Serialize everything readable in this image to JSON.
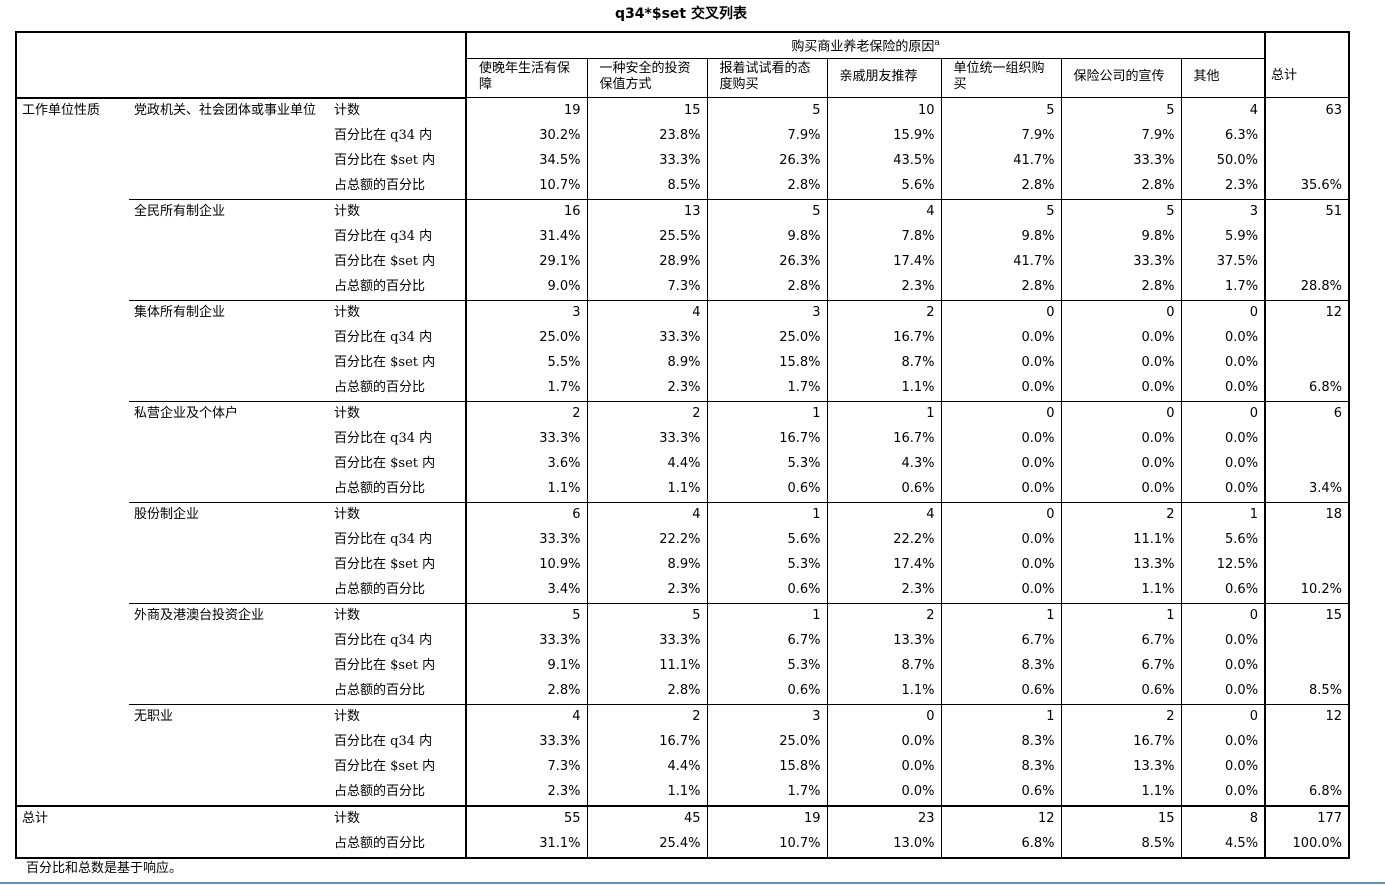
{
  "title": "q34*$set 交叉列表",
  "header": {
    "span_label": "购买商业养老保险的原因",
    "span_sup": "a",
    "columns": [
      "使晚年生活有保障",
      "一种安全的投资保值方式",
      "报着试试看的态度购买",
      "亲戚朋友推荐",
      "单位统一组织购买",
      "保险公司的宣传",
      "其他"
    ],
    "total_label": "总计"
  },
  "row_var_label": "工作单位性质",
  "stat_labels": {
    "count": "计数",
    "pct_row": "百分比在 q34 内",
    "pct_col": "百分比在 $set 内",
    "pct_total": "占总额的百分比"
  },
  "groups": [
    {
      "label": "党政机关、社会团体或事业单位",
      "count": [
        "19",
        "15",
        "5",
        "10",
        "5",
        "5",
        "4"
      ],
      "count_total": "63",
      "pct_row": [
        "30.2%",
        "23.8%",
        "7.9%",
        "15.9%",
        "7.9%",
        "7.9%",
        "6.3%"
      ],
      "pct_col": [
        "34.5%",
        "33.3%",
        "26.3%",
        "43.5%",
        "41.7%",
        "33.3%",
        "50.0%"
      ],
      "pct_total": [
        "10.7%",
        "8.5%",
        "2.8%",
        "5.6%",
        "2.8%",
        "2.8%",
        "2.3%"
      ],
      "pct_total_total": "35.6%"
    },
    {
      "label": "全民所有制企业",
      "count": [
        "16",
        "13",
        "5",
        "4",
        "5",
        "5",
        "3"
      ],
      "count_total": "51",
      "pct_row": [
        "31.4%",
        "25.5%",
        "9.8%",
        "7.8%",
        "9.8%",
        "9.8%",
        "5.9%"
      ],
      "pct_col": [
        "29.1%",
        "28.9%",
        "26.3%",
        "17.4%",
        "41.7%",
        "33.3%",
        "37.5%"
      ],
      "pct_total": [
        "9.0%",
        "7.3%",
        "2.8%",
        "2.3%",
        "2.8%",
        "2.8%",
        "1.7%"
      ],
      "pct_total_total": "28.8%"
    },
    {
      "label": "集体所有制企业",
      "count": [
        "3",
        "4",
        "3",
        "2",
        "0",
        "0",
        "0"
      ],
      "count_total": "12",
      "pct_row": [
        "25.0%",
        "33.3%",
        "25.0%",
        "16.7%",
        "0.0%",
        "0.0%",
        "0.0%"
      ],
      "pct_col": [
        "5.5%",
        "8.9%",
        "15.8%",
        "8.7%",
        "0.0%",
        "0.0%",
        "0.0%"
      ],
      "pct_total": [
        "1.7%",
        "2.3%",
        "1.7%",
        "1.1%",
        "0.0%",
        "0.0%",
        "0.0%"
      ],
      "pct_total_total": "6.8%"
    },
    {
      "label": "私营企业及个体户",
      "count": [
        "2",
        "2",
        "1",
        "1",
        "0",
        "0",
        "0"
      ],
      "count_total": "6",
      "pct_row": [
        "33.3%",
        "33.3%",
        "16.7%",
        "16.7%",
        "0.0%",
        "0.0%",
        "0.0%"
      ],
      "pct_col": [
        "3.6%",
        "4.4%",
        "5.3%",
        "4.3%",
        "0.0%",
        "0.0%",
        "0.0%"
      ],
      "pct_total": [
        "1.1%",
        "1.1%",
        "0.6%",
        "0.6%",
        "0.0%",
        "0.0%",
        "0.0%"
      ],
      "pct_total_total": "3.4%"
    },
    {
      "label": "股份制企业",
      "count": [
        "6",
        "4",
        "1",
        "4",
        "0",
        "2",
        "1"
      ],
      "count_total": "18",
      "pct_row": [
        "33.3%",
        "22.2%",
        "5.6%",
        "22.2%",
        "0.0%",
        "11.1%",
        "5.6%"
      ],
      "pct_col": [
        "10.9%",
        "8.9%",
        "5.3%",
        "17.4%",
        "0.0%",
        "13.3%",
        "12.5%"
      ],
      "pct_total": [
        "3.4%",
        "2.3%",
        "0.6%",
        "2.3%",
        "0.0%",
        "1.1%",
        "0.6%"
      ],
      "pct_total_total": "10.2%"
    },
    {
      "label": "外商及港澳台投资企业",
      "count": [
        "5",
        "5",
        "1",
        "2",
        "1",
        "1",
        "0"
      ],
      "count_total": "15",
      "pct_row": [
        "33.3%",
        "33.3%",
        "6.7%",
        "13.3%",
        "6.7%",
        "6.7%",
        "0.0%"
      ],
      "pct_col": [
        "9.1%",
        "11.1%",
        "5.3%",
        "8.7%",
        "8.3%",
        "6.7%",
        "0.0%"
      ],
      "pct_total": [
        "2.8%",
        "2.8%",
        "0.6%",
        "1.1%",
        "0.6%",
        "0.6%",
        "0.0%"
      ],
      "pct_total_total": "8.5%"
    },
    {
      "label": "无职业",
      "count": [
        "4",
        "2",
        "3",
        "0",
        "1",
        "2",
        "0"
      ],
      "count_total": "12",
      "pct_row": [
        "33.3%",
        "16.7%",
        "25.0%",
        "0.0%",
        "8.3%",
        "16.7%",
        "0.0%"
      ],
      "pct_col": [
        "7.3%",
        "4.4%",
        "15.8%",
        "0.0%",
        "8.3%",
        "13.3%",
        "0.0%"
      ],
      "pct_total": [
        "2.3%",
        "1.1%",
        "1.7%",
        "0.0%",
        "0.6%",
        "1.1%",
        "0.0%"
      ],
      "pct_total_total": "6.8%"
    }
  ],
  "total": {
    "label": "总计",
    "count": [
      "55",
      "45",
      "19",
      "23",
      "12",
      "15",
      "8"
    ],
    "count_total": "177",
    "pct_total": [
      "31.1%",
      "25.4%",
      "10.7%",
      "13.0%",
      "6.8%",
      "8.5%",
      "4.5%"
    ],
    "pct_total_total": "100.0%"
  },
  "footnote": "百分比和总数是基于响应。"
}
